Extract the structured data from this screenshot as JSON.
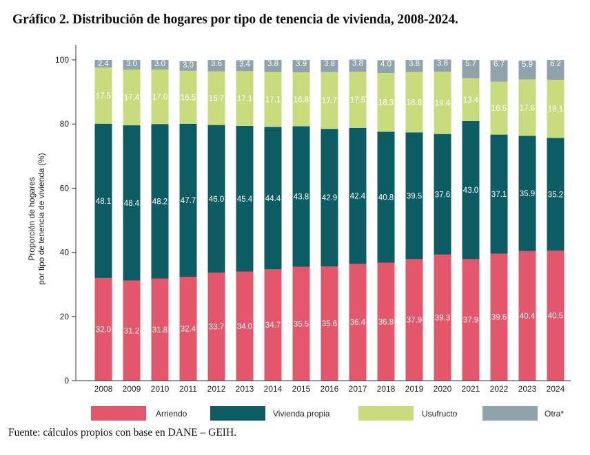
{
  "title": "Gráfico 2. Distribución de hogares por tipo de tenencia de vivienda, 2008-2024.",
  "source": "Fuente: cálculos propios con base en DANE – GEIH.",
  "chart_data": {
    "type": "bar",
    "stacked": true,
    "title": "Gráfico 2. Distribución de hogares por tipo de tenencia de vivienda, 2008-2024.",
    "xlabel": "",
    "ylabel": "Proporción de hogares\npor tipo de tenencia de vivienda (%)",
    "ylabel_lines": [
      "Proporción de hogares",
      "por tipo de tenencia de vivienda (%)"
    ],
    "ylim": [
      0,
      100
    ],
    "yticks": [
      0,
      20,
      40,
      60,
      80,
      100
    ],
    "grid": false,
    "legend_position": "bottom",
    "categories": [
      "2008",
      "2009",
      "2010",
      "2011",
      "2012",
      "2013",
      "2014",
      "2015",
      "2016",
      "2017",
      "2018",
      "2019",
      "2020",
      "2021",
      "2022",
      "2023",
      "2024"
    ],
    "series": [
      {
        "name": "Arriendo",
        "color": "#e4566a",
        "values": [
          32.0,
          31.2,
          31.8,
          32.4,
          33.7,
          34.0,
          34.7,
          35.5,
          35.6,
          36.4,
          36.8,
          37.9,
          39.3,
          37.9,
          39.6,
          40.4,
          40.5
        ]
      },
      {
        "name": "Vivienda propia",
        "color": "#0b5d63",
        "values": [
          48.1,
          48.4,
          48.2,
          47.7,
          46.0,
          45.4,
          44.4,
          43.8,
          42.9,
          42.4,
          40.8,
          39.5,
          37.6,
          43.0,
          37.1,
          35.9,
          35.2
        ]
      },
      {
        "name": "Usufructo",
        "color": "#c8dc7e",
        "values": [
          17.5,
          17.4,
          17.0,
          16.5,
          16.7,
          17.1,
          17.1,
          16.8,
          17.7,
          17.5,
          18.3,
          18.8,
          19.4,
          13.4,
          16.5,
          17.6,
          18.1
        ]
      },
      {
        "name": "Otra*",
        "color": "#8fa3ad",
        "values": [
          2.4,
          3.0,
          3.0,
          3.0,
          3.6,
          3.4,
          3.8,
          3.9,
          3.8,
          3.8,
          4.0,
          3.8,
          3.8,
          5.7,
          6.7,
          5.9,
          6.2
        ]
      }
    ]
  }
}
